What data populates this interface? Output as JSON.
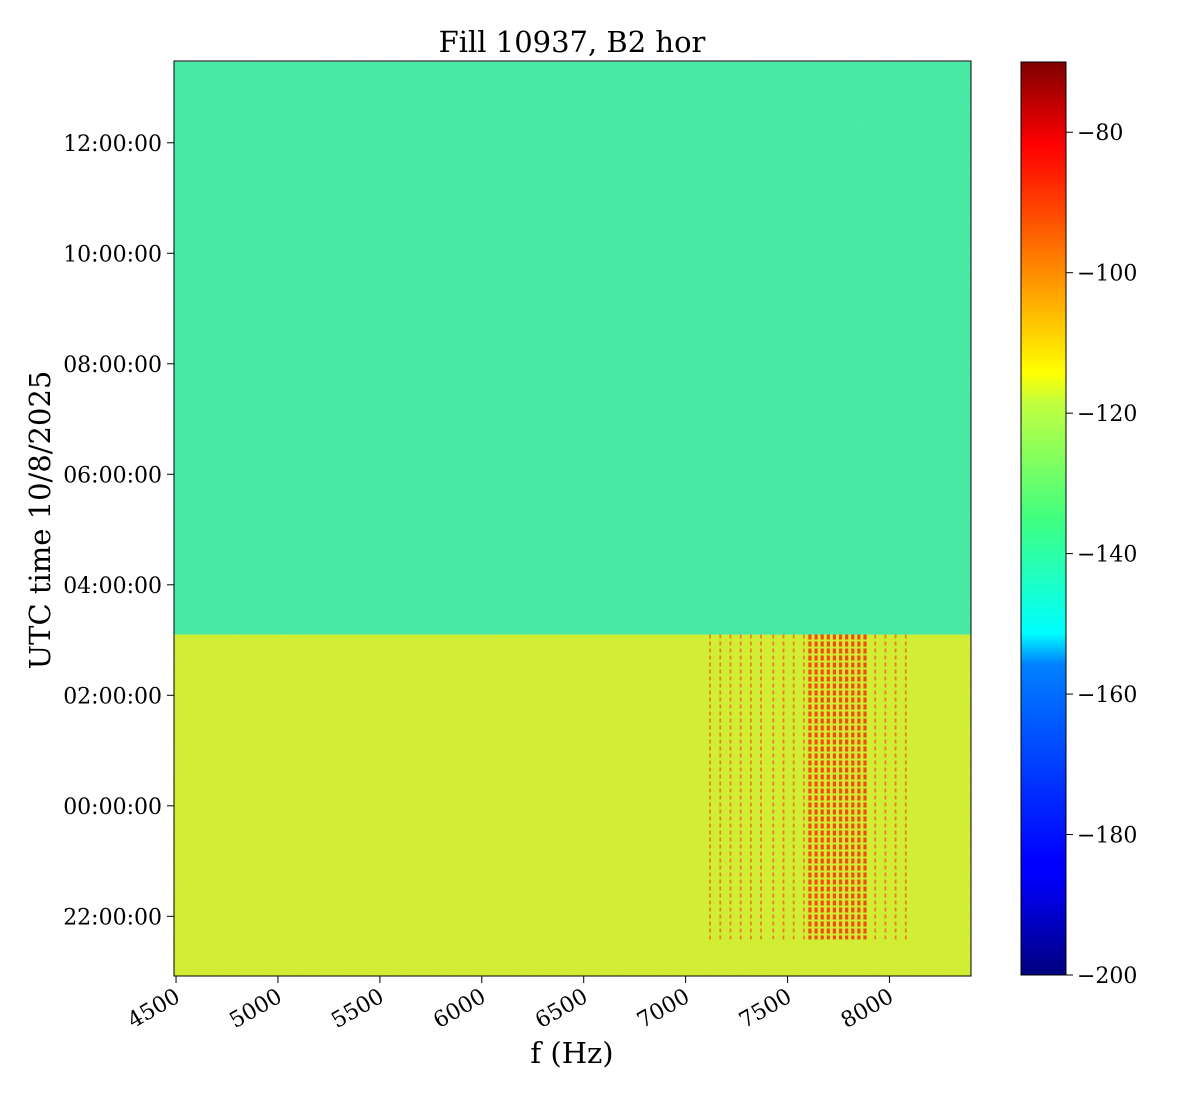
{
  "chart_data": {
    "type": "heatmap",
    "title": "Fill 10937, B2 hor",
    "xlabel": "f (Hz)",
    "ylabel": "UTC time 10/8/2025",
    "xlim": [
      4490,
      8400
    ],
    "x_ticks": [
      4500,
      5000,
      5500,
      6000,
      6500,
      7000,
      7500,
      8000
    ],
    "x_tick_labels": [
      "4500",
      "5000",
      "5500",
      "6000",
      "6500",
      "7000",
      "7500",
      "8000"
    ],
    "ylim_hours_relative_to_midnight": [
      -3.08,
      13.48
    ],
    "y_ticks": [
      "22:00:00",
      "00:00:00",
      "02:00:00",
      "04:00:00",
      "06:00:00",
      "08:00:00",
      "10:00:00",
      "12:00:00"
    ],
    "colorbar": {
      "colormap": "jet",
      "range": [
        -200,
        -70
      ],
      "ticks": [
        -80,
        -100,
        -120,
        -140,
        -160,
        -180,
        -200
      ],
      "tick_labels": [
        "−80",
        "−100",
        "−120",
        "−140",
        "−160",
        "−180",
        "−200"
      ]
    },
    "regions": [
      {
        "time_from": "03:06:00",
        "time_to": "13:28:00",
        "level_dB": -140
      },
      {
        "time_from": "20:55:00",
        "time_to": "03:06:00",
        "level_dB": -122
      }
    ],
    "spectral_lines": {
      "time_from": "21:35:00",
      "time_to": "03:06:00",
      "frequencies_hz": [
        7120,
        7170,
        7220,
        7270,
        7320,
        7370,
        7430,
        7480,
        7530,
        7580,
        7610,
        7640,
        7670,
        7700,
        7730,
        7760,
        7790,
        7820,
        7850,
        7880,
        7930,
        7980,
        8030,
        8080
      ],
      "peak_level_dB": -90
    },
    "colors": {
      "quiet_band": "#40ee9a",
      "beam_band": "#cbf23c",
      "line_color": "#f2430c"
    }
  }
}
